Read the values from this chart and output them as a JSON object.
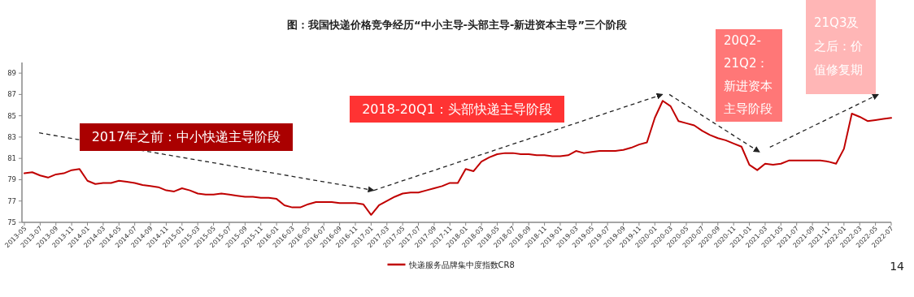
{
  "chart_data": {
    "type": "line",
    "title": "图：我国快递价格竞争经历“中小主导-头部主导-新进资本主导”三个阶段",
    "x": [
      "2013-05",
      "2013-06",
      "2013-07",
      "2013-08",
      "2013-09",
      "2013-10",
      "2013-11",
      "2013-12",
      "2014-01",
      "2014-02",
      "2014-03",
      "2014-04",
      "2014-05",
      "2014-06",
      "2014-07",
      "2014-08",
      "2014-09",
      "2014-10",
      "2014-11",
      "2014-12",
      "2015-01",
      "2015-02",
      "2015-03",
      "2015-04",
      "2015-05",
      "2015-06",
      "2015-07",
      "2015-08",
      "2015-09",
      "2015-10",
      "2015-11",
      "2015-12",
      "2016-01",
      "2016-02",
      "2016-03",
      "2016-04",
      "2016-05",
      "2016-06",
      "2016-07",
      "2016-08",
      "2016-09",
      "2016-10",
      "2016-11",
      "2016-12",
      "2017-01",
      "2017-02",
      "2017-03",
      "2017-04",
      "2017-05",
      "2017-06",
      "2017-07",
      "2017-08",
      "2017-09",
      "2017-10",
      "2017-11",
      "2017-12",
      "2018-01",
      "2018-02",
      "2018-03",
      "2018-04",
      "2018-05",
      "2018-06",
      "2018-07",
      "2018-08",
      "2018-09",
      "2018-10",
      "2018-11",
      "2018-12",
      "2019-01",
      "2019-02",
      "2019-03",
      "2019-04",
      "2019-05",
      "2019-06",
      "2019-07",
      "2019-08",
      "2019-09",
      "2019-10",
      "2019-11",
      "2019-12",
      "2020-01",
      "2020-02",
      "2020-03",
      "2020-04",
      "2020-05",
      "2020-06",
      "2020-07",
      "2020-08",
      "2020-09",
      "2020-10",
      "2020-11",
      "2020-12",
      "2021-01",
      "2021-02",
      "2021-03",
      "2021-04",
      "2021-05",
      "2021-06",
      "2021-07",
      "2021-08",
      "2021-09",
      "2021-10",
      "2021-11",
      "2021-12",
      "2022-01",
      "2022-02",
      "2022-03",
      "2022-04",
      "2022-05",
      "2022-06",
      "2022-07"
    ],
    "series": [
      {
        "name": "快递服务品牌集中度指数CR8",
        "color": "#c00000",
        "values": [
          79.6,
          79.7,
          79.4,
          79.2,
          79.5,
          79.6,
          79.9,
          80.0,
          78.9,
          78.6,
          78.7,
          78.7,
          78.9,
          78.8,
          78.7,
          78.5,
          78.4,
          78.3,
          78.0,
          77.9,
          78.2,
          78.0,
          77.7,
          77.6,
          77.6,
          77.7,
          77.6,
          77.5,
          77.4,
          77.4,
          77.3,
          77.3,
          77.2,
          76.6,
          76.4,
          76.4,
          76.7,
          76.9,
          76.9,
          76.9,
          76.8,
          76.8,
          76.8,
          76.7,
          75.7,
          76.6,
          77.0,
          77.4,
          77.7,
          77.8,
          77.8,
          78.0,
          78.2,
          78.4,
          78.7,
          78.7,
          80.0,
          79.8,
          80.7,
          81.1,
          81.4,
          81.5,
          81.5,
          81.4,
          81.4,
          81.3,
          81.3,
          81.2,
          81.2,
          81.3,
          81.7,
          81.5,
          81.6,
          81.7,
          81.7,
          81.7,
          81.8,
          82.0,
          82.3,
          82.5,
          84.8,
          86.4,
          85.9,
          84.5,
          84.3,
          84.1,
          83.6,
          83.2,
          82.9,
          82.7,
          82.4,
          82.1,
          80.4,
          79.9,
          80.5,
          80.4,
          80.5,
          80.8,
          80.8,
          80.8,
          80.8,
          80.8,
          80.7,
          80.5,
          81.9,
          85.2,
          84.9,
          84.5,
          84.6,
          84.7,
          84.8
        ]
      }
    ],
    "xlim": [
      "2013-05",
      "2022-07"
    ],
    "xticks": [
      "2013-05",
      "2013-07",
      "2013-09",
      "2013-11",
      "2014-01",
      "2014-03",
      "2014-05",
      "2014-07",
      "2014-09",
      "2014-11",
      "2015-01",
      "2015-03",
      "2015-05",
      "2015-07",
      "2015-09",
      "2015-11",
      "2016-01",
      "2016-03",
      "2016-05",
      "2016-07",
      "2016-09",
      "2016-11",
      "2017-01",
      "2017-03",
      "2017-05",
      "2017-07",
      "2017-09",
      "2017-11",
      "2018-01",
      "2018-03",
      "2018-05",
      "2018-07",
      "2018-09",
      "2018-11",
      "2019-01",
      "2019-03",
      "2019-05",
      "2019-07",
      "2019-09",
      "2019-11",
      "2020-01",
      "2020-03",
      "2020-05",
      "2020-07",
      "2020-09",
      "2020-11",
      "2021-01",
      "2021-03",
      "2021-05",
      "2021-07",
      "2021-09",
      "2021-11",
      "2022-01",
      "2022-03",
      "2022-05",
      "2022-07"
    ],
    "ylim": [
      75,
      90
    ],
    "yticks": [
      75,
      77,
      79,
      81,
      83,
      85,
      87,
      89
    ],
    "legend": "bottom",
    "annotations": [
      "2017年之前：中小快递主导阶段",
      "2018-20Q1：头部快递主导阶段",
      "20Q2-21Q2：新进资本主导阶段",
      "21Q3及之后：价值修复期",
      "14"
    ]
  }
}
